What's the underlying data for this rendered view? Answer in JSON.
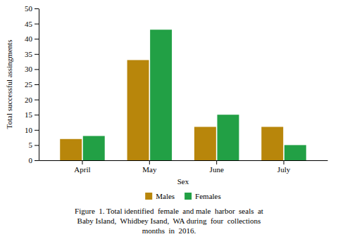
{
  "chart_data": {
    "type": "bar",
    "categories": [
      "April",
      "May",
      "June",
      "July"
    ],
    "series": [
      {
        "name": "Males",
        "color": "#B8860B",
        "values": [
          7,
          33,
          11,
          11
        ]
      },
      {
        "name": "Females",
        "color": "#22A045",
        "values": [
          8,
          43,
          15,
          5
        ]
      }
    ],
    "ylabel": "Total successful assingments",
    "xlabel": "Sex",
    "ylim": [
      0,
      50
    ],
    "yticks": [
      0,
      5,
      10,
      15,
      20,
      25,
      30,
      35,
      40,
      45,
      50
    ],
    "legend": "bottom",
    "grid": false,
    "annotations": [
      "Figure  1. Total identified  female  and male  harbor  seals  at",
      "Baby Island,  Whidbey Isand,  WA during  four  collections",
      "months  in  2016."
    ]
  }
}
